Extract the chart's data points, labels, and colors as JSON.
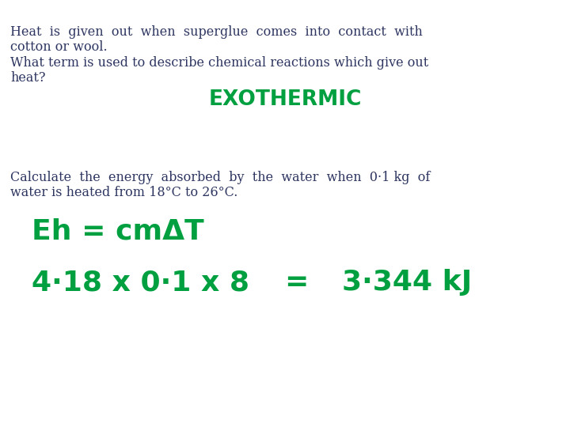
{
  "background_color": "#ffffff",
  "text_color_body": "#2d3560",
  "text_color_green": "#00a040",
  "line1": "Heat  is  given  out  when  superglue  comes  into  contact  with",
  "line2": "cotton or wool.",
  "line3": "What term is used to describe chemical reactions which give out",
  "line4": "heat?",
  "exothermic": "EXOTHERMIC",
  "line5": "Calculate  the  energy  absorbed  by  the  water  when  0·1 kg  of",
  "line6": "water is heated from 18°C to 26°C.",
  "formula_line1": "Eh = cmΔT",
  "formula_line2a": "4·18 x 0·1 x 8",
  "formula_line2b": "=",
  "formula_line2c": "3·344 kJ",
  "body_fontsize": 11.5,
  "exothermic_fontsize": 19,
  "formula_fontsize": 26
}
